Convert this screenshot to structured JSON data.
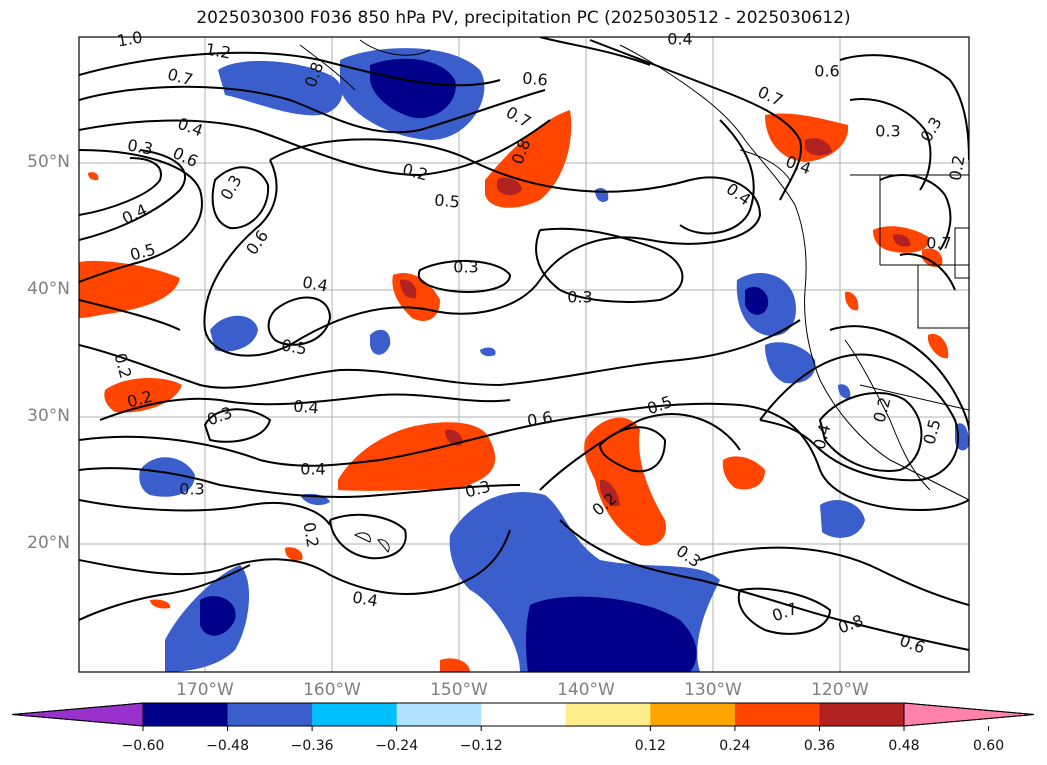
{
  "title": "2025030300 F036 850 hPa PV, precipitation PC (2025030512 - 2025030612)",
  "lat_labels": [
    "50°N",
    "40°N",
    "30°N",
    "20°N"
  ],
  "lon_labels": [
    "170°W",
    "160°W",
    "150°W",
    "140°W",
    "130°W",
    "120°W"
  ],
  "colorbar": {
    "ticks": [
      "−0.60",
      "−0.48",
      "−0.36",
      "−0.24",
      "−0.12",
      "0.12",
      "0.24",
      "0.36",
      "0.48",
      "0.60"
    ],
    "colors": [
      "#9932cc",
      "#00008b",
      "#3a5fcd",
      "#00bfff",
      "#b0e2ff",
      "#ffffff",
      "#ffec8b",
      "#ffa500",
      "#ff4500",
      "#b22222",
      "#ff82ab"
    ]
  },
  "contour_labels": [
    "1.0",
    "1.2",
    "0.7",
    "0.8",
    "0.4",
    "0.6",
    "0.7",
    "0.8",
    "0.7",
    "0.6",
    "0.4",
    "0.3",
    "0.6",
    "0.3",
    "0.4",
    "0.5",
    "0.6",
    "0.2",
    "0.5",
    "0.4",
    "0.3",
    "0.7",
    "0.4",
    "0.4",
    "0.5",
    "0.3",
    "0.2",
    "0.2",
    "0.3",
    "0.4",
    "0.6",
    "0.5",
    "0.4",
    "0.3",
    "0.3",
    "0.2",
    "0.2",
    "0.4",
    "0.3",
    "0.7",
    "0.8",
    "0.6",
    "0.4",
    "0.2",
    "0.5",
    "0.3",
    "0.2",
    "0.3"
  ]
}
